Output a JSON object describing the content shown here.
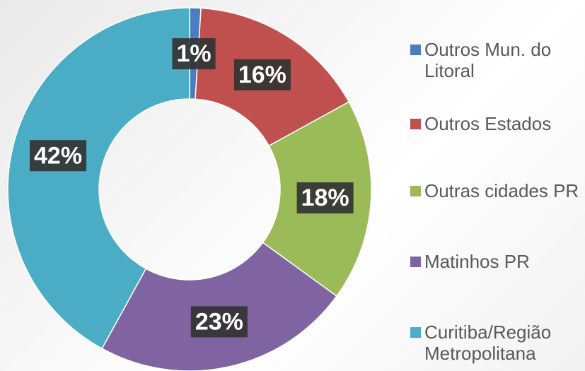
{
  "chart_data": {
    "type": "donut",
    "categories": [
      "Outros Mun. do Litoral",
      "Outros Estados",
      "Outras cidades PR",
      "Matinhos PR",
      "Curitiba/Região Metropolitana"
    ],
    "values": [
      1,
      16,
      18,
      23,
      42
    ],
    "value_labels": [
      "1%",
      "16%",
      "18%",
      "23%",
      "42%"
    ],
    "colors": [
      "#4a7ec0",
      "#c0504d",
      "#9bbb59",
      "#8064a2",
      "#4bacc6"
    ],
    "legend": "right"
  }
}
